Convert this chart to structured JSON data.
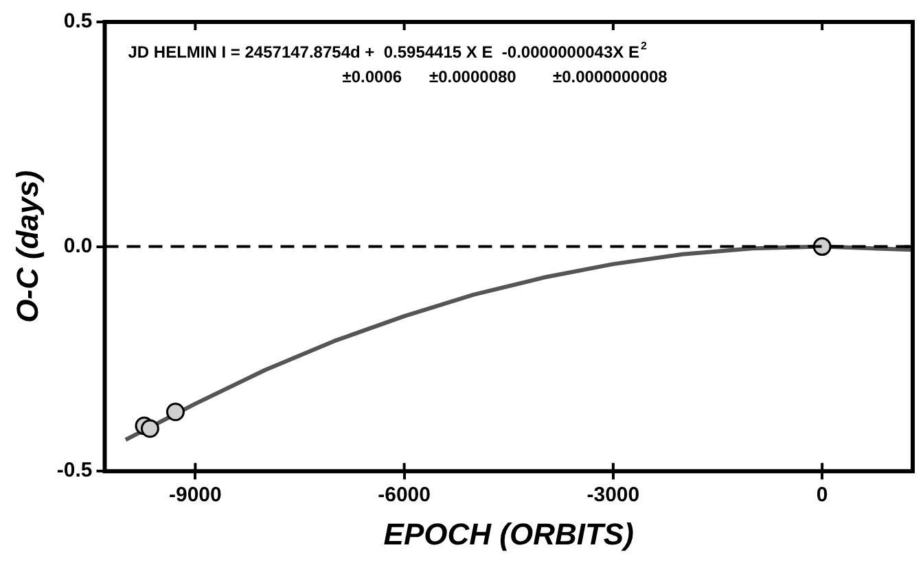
{
  "chart_data": {
    "type": "scatter",
    "xlabel": "EPOCH (ORBITS)",
    "ylabel": "O-C (days)",
    "xlim": [
      -10300,
      1300
    ],
    "ylim": [
      -0.5,
      0.5
    ],
    "xticks": [
      -9000,
      -6000,
      -3000,
      0
    ],
    "yticks": [
      {
        "value": -0.5,
        "label": "-0.5"
      },
      {
        "value": 0,
        "label": "0.0"
      },
      {
        "value": 0.5,
        "label": "0.5"
      }
    ],
    "grid": false,
    "legend": false,
    "marker": "circle",
    "series": [
      {
        "color": "#d0d0d0",
        "x": [
          -9733,
          -9650,
          -9285,
          0
        ],
        "values": [
          -0.399,
          -0.405,
          -0.368,
          0
        ]
      },
      {
        "type": "line",
        "color": "#555555",
        "marker": "none",
        "x": [
          -10000,
          -9000,
          -8000,
          -7000,
          -6000,
          -5000,
          -4000,
          -3000,
          -2000,
          -1000,
          0,
          1300
        ],
        "values": [
          -0.43,
          -0.35,
          -0.275,
          -0.21,
          -0.155,
          -0.107,
          -0.069,
          -0.039,
          -0.017,
          -0.004,
          0,
          -0.007
        ]
      }
    ],
    "ref_lines": [
      {
        "axis": "y",
        "value": 0,
        "line_style": "dashed",
        "color": "#000000"
      }
    ],
    "annotations": [
      "JD HELMIN I = 2457147.8754d +  0.5954415 X E  -0.0000000043X E$^{2}$",
      "±0.0006      ±0.0000080        ±0.0000000008"
    ]
  }
}
